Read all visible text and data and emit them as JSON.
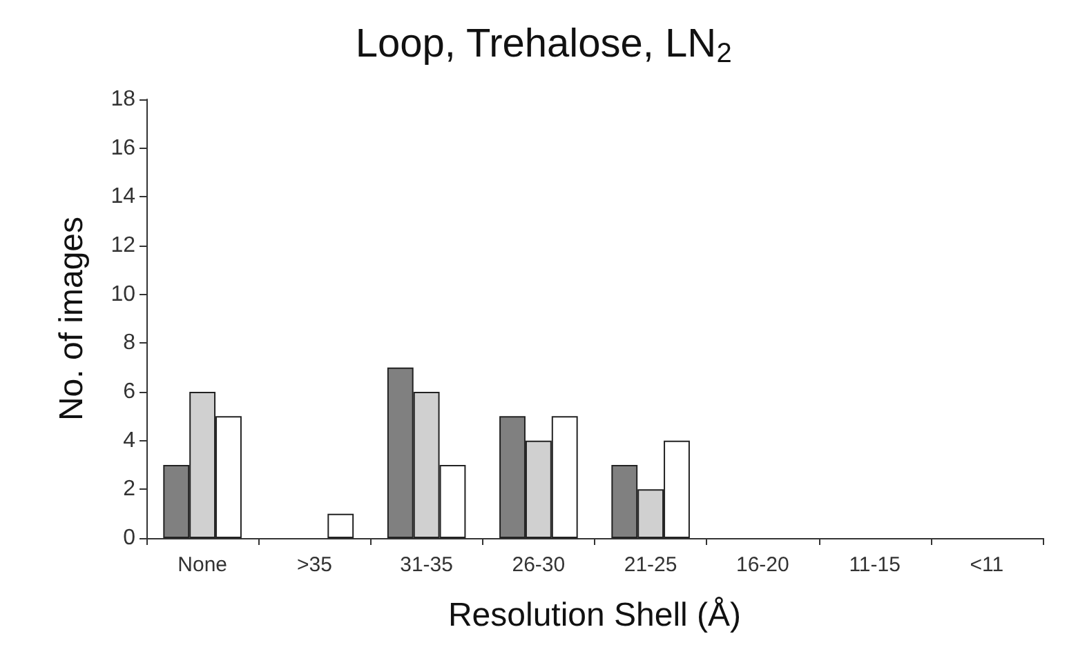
{
  "chart_data": {
    "type": "bar",
    "title": "Loop, Trehalose, LN$_{2}$",
    "xlabel": "Resolution Shell (Å)",
    "ylabel": "No. of images",
    "categories": [
      "None",
      ">35",
      "31-35",
      "26-30",
      "21-25",
      "16-20",
      "11-15",
      "<11"
    ],
    "series": [
      {
        "color": "#808080",
        "values": [
          3,
          0,
          7,
          5,
          3,
          0,
          0,
          0
        ]
      },
      {
        "color": "#d0d0d0",
        "values": [
          6,
          0,
          6,
          4,
          2,
          0,
          0,
          0
        ]
      },
      {
        "color": "#ffffff",
        "values": [
          5,
          1,
          3,
          5,
          4,
          0,
          0,
          0
        ]
      }
    ],
    "ylim": [
      0,
      18
    ],
    "yticks": [
      0,
      2,
      4,
      6,
      8,
      10,
      12,
      14,
      16,
      18
    ],
    "grid": false
  }
}
